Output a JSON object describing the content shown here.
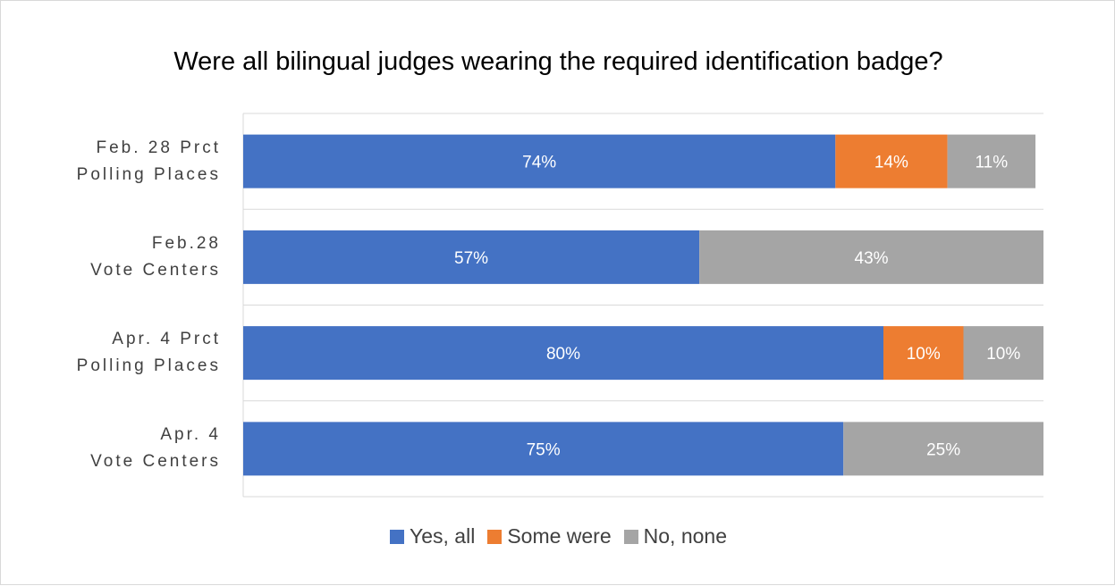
{
  "chart_data": {
    "type": "bar",
    "orientation": "horizontal",
    "stacked": true,
    "title": "Were all bilingual judges wearing the required identification badge?",
    "categories": [
      [
        "Feb. 28 Prct",
        "Polling Places"
      ],
      [
        "Feb.28",
        "Vote Centers"
      ],
      [
        "Apr. 4 Prct",
        "Polling Places"
      ],
      [
        "Apr. 4",
        "Vote Centers"
      ]
    ],
    "series": [
      {
        "name": "Yes, all",
        "color": "#4472C4",
        "values": [
          74,
          57,
          80,
          75
        ],
        "labels": [
          "74%",
          "57%",
          "80%",
          "75%"
        ]
      },
      {
        "name": "Some were",
        "color": "#ED7D31",
        "values": [
          14,
          0,
          10,
          0
        ],
        "labels": [
          "14%",
          "",
          "10%",
          ""
        ]
      },
      {
        "name": "No, none",
        "color": "#A5A5A5",
        "values": [
          11,
          43,
          10,
          25
        ],
        "labels": [
          "11%",
          "43%",
          "10%",
          "25%"
        ]
      }
    ],
    "xlim": [
      0,
      100
    ],
    "grid": true,
    "legend_position": "bottom"
  }
}
